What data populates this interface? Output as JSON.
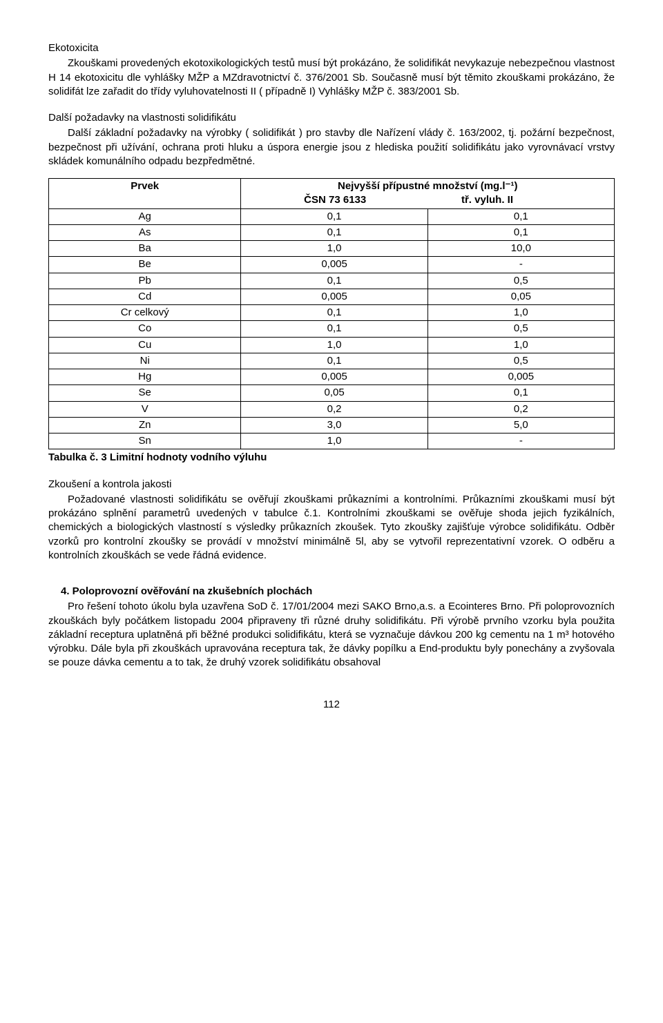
{
  "sec1": {
    "title": "Ekotoxicita",
    "body": "Zkouškami provedených ekotoxikologických testů musí být prokázáno, že solidifikát nevykazuje nebezpečnou vlastnost H 14 ekotoxicitu dle vyhlášky MŽP a MZdravotnictví č. 376/2001 Sb. Současně musí být těmito zkouškami prokázáno, že solidifát lze zařadit do třídy vyluhovatelnosti II ( případně I) Vyhlášky MŽP č. 383/2001 Sb."
  },
  "sec2": {
    "title": "Další požadavky na vlastnosti solidifikátu",
    "body": "Další základní požadavky na výrobky ( solidifikát ) pro stavby dle Nařízení vlády č. 163/2002, tj. požární bezpečnost, bezpečnost při užívání, ochrana proti hluku a úspora energie jsou z hlediska použití solidifikátu  jako vyrovnávací vrstvy skládek komunálního odpadu bezpředmětné."
  },
  "table": {
    "head_left": "Prvek",
    "head_right_top": "Nejvyšší přípustné množství (mg.l⁻¹)",
    "head_right_l": "ČSN 73 6133",
    "head_right_r": "tř. vyluh. II",
    "rows": [
      {
        "e": "Ag",
        "a": "0,1",
        "b": "0,1"
      },
      {
        "e": "As",
        "a": "0,1",
        "b": "0,1"
      },
      {
        "e": "Ba",
        "a": "1,0",
        "b": "10,0"
      },
      {
        "e": "Be",
        "a": "0,005",
        "b": "-"
      },
      {
        "e": "Pb",
        "a": "0,1",
        "b": "0,5"
      },
      {
        "e": "Cd",
        "a": "0,005",
        "b": "0,05"
      },
      {
        "e": "Cr celkový",
        "a": "0,1",
        "b": "1,0"
      },
      {
        "e": "Co",
        "a": "0,1",
        "b": "0,5"
      },
      {
        "e": "Cu",
        "a": "1,0",
        "b": "1,0"
      },
      {
        "e": "Ni",
        "a": "0,1",
        "b": "0,5"
      },
      {
        "e": "Hg",
        "a": "0,005",
        "b": "0,005"
      },
      {
        "e": "Se",
        "a": "0,05",
        "b": "0,1"
      },
      {
        "e": "V",
        "a": "0,2",
        "b": "0,2"
      },
      {
        "e": "Zn",
        "a": "3,0",
        "b": "5,0"
      },
      {
        "e": "Sn",
        "a": "1,0",
        "b": "-"
      }
    ],
    "caption": "Tabulka č. 3 Limitní hodnoty vodního výluhu"
  },
  "sec3": {
    "title": "Zkoušení a kontrola jakosti",
    "body": "Požadované vlastnosti solidifikátu se ověřují zkouškami průkazními a kontrolními. Průkazními zkouškami  musí být prokázáno splnění parametrů uvedených v tabulce č.1. Kontrolními zkouškami se ověřuje shoda jejich fyzikálních, chemických a biologických  vlastností s výsledky průkazních zkoušek. Tyto zkoušky zajišťuje výrobce solidifikátu. Odběr vzorků pro kontrolní zkoušky se provádí v množství minimálně 5l, aby se vytvořil reprezentativní vzorek. O odběru a kontrolních zkouškách se vede řádná evidence."
  },
  "sec4": {
    "title": "4.  Poloprovozní ověřování na zkušebních plochách",
    "body": "Pro řešení tohoto úkolu byla uzavřena SoD č. 17/01/2004 mezi SAKO Brno,a.s. a Ecointeres Brno. Při poloprovozních zkouškách byly počátkem listopadu 2004 připraveny tři různé druhy solidifikátu. Při výrobě prvního vzorku byla použita základní receptura uplatněná při běžné  produkci solidifikátu, která se  vyznačuje dávkou 200 kg cementu na 1 m³ hotového výrobku. Dále byla při zkouškách upravována  receptura tak, že dávky popílku a End-produktu byly ponechány a zvyšovala se pouze dávka cementu a to tak, že druhý vzorek solidifikátu obsahoval"
  },
  "page_number": "112"
}
